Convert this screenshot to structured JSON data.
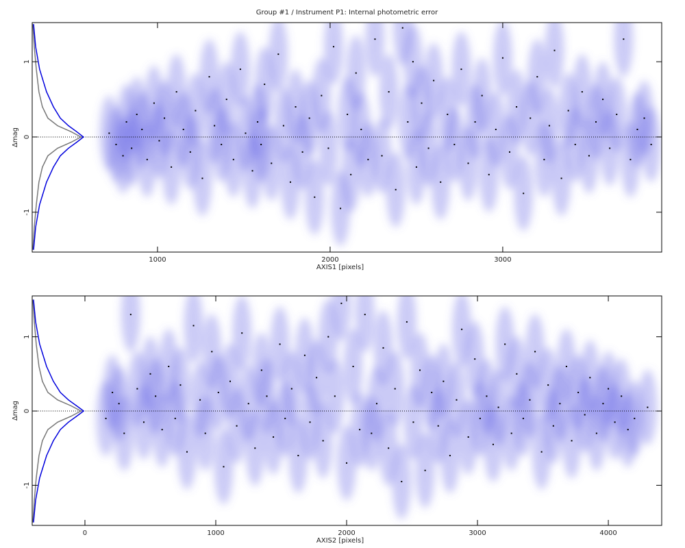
{
  "chart_data": [
    {
      "type": "scatter",
      "title": "Group #1 / Instrument P1: Internal photometric error",
      "xlabel": "AXIS1 [pixels]",
      "ylabel": "Δmag",
      "xlim": [
        274,
        3921
      ],
      "ylim": [
        -1.53,
        1.52
      ],
      "xticks": [
        1000,
        2000,
        3000
      ],
      "yticks": [
        -1,
        0,
        1
      ],
      "hline": 0,
      "color": "#000000",
      "density_color": "#6a6ae6",
      "x": [
        720,
        760,
        800,
        820,
        850,
        880,
        910,
        940,
        980,
        1010,
        1040,
        1080,
        1110,
        1150,
        1190,
        1220,
        1260,
        1300,
        1330,
        1370,
        1400,
        1440,
        1480,
        1510,
        1550,
        1580,
        1600,
        1620,
        1660,
        1700,
        1730,
        1770,
        1800,
        1840,
        1880,
        1910,
        1950,
        1990,
        2020,
        2060,
        2100,
        2120,
        2150,
        2180,
        2220,
        2260,
        2300,
        2340,
        2380,
        2420,
        2450,
        2480,
        2500,
        2530,
        2570,
        2600,
        2640,
        2680,
        2720,
        2760,
        2800,
        2840,
        2880,
        2920,
        2960,
        3000,
        3040,
        3080,
        3120,
        3160,
        3200,
        3240,
        3270,
        3300,
        3340,
        3380,
        3420,
        3460,
        3500,
        3540,
        3580,
        3620,
        3660,
        3700,
        3740,
        3780,
        3820,
        3860
      ],
      "values": [
        0.05,
        -0.1,
        -0.25,
        0.2,
        -0.15,
        0.3,
        0.1,
        -0.3,
        0.45,
        -0.05,
        0.25,
        -0.4,
        0.6,
        0.1,
        -0.2,
        0.35,
        -0.55,
        0.8,
        0.15,
        -0.1,
        0.5,
        -0.3,
        0.9,
        0.05,
        -0.45,
        0.2,
        -0.1,
        0.7,
        -0.35,
        1.1,
        0.15,
        -0.6,
        0.4,
        -0.2,
        0.25,
        -0.8,
        0.55,
        -0.15,
        1.2,
        -0.95,
        0.3,
        -0.5,
        0.85,
        0.1,
        -0.3,
        1.3,
        -0.25,
        0.6,
        -0.7,
        1.45,
        0.2,
        1.0,
        -0.4,
        0.45,
        -0.15,
        0.75,
        -0.6,
        0.3,
        -0.1,
        0.9,
        -0.35,
        0.2,
        0.55,
        -0.5,
        0.1,
        1.05,
        -0.2,
        0.4,
        -0.75,
        0.25,
        0.8,
        -0.3,
        0.15,
        1.15,
        -0.55,
        0.35,
        -0.1,
        0.6,
        -0.25,
        0.2,
        0.5,
        -0.15,
        0.3,
        1.3,
        -0.3,
        0.1,
        0.25,
        -0.1
      ],
      "curves": [
        {
          "color": "#777777",
          "x": [
            278,
            286,
            298,
            313,
            333,
            365,
            421,
            500,
            556,
            500,
            421,
            365,
            333,
            313,
            298,
            286,
            278
          ],
          "values": [
            -1.5,
            -1.2,
            -0.9,
            -0.6,
            -0.4,
            -0.25,
            -0.15,
            -0.07,
            0,
            0.07,
            0.15,
            0.25,
            0.4,
            0.6,
            0.9,
            1.2,
            1.5
          ]
        },
        {
          "color": "#0000dd",
          "x": [
            282,
            294,
            317,
            357,
            397,
            437,
            484,
            532,
            571,
            532,
            484,
            437,
            397,
            357,
            317,
            294,
            282
          ],
          "values": [
            -1.5,
            -1.2,
            -0.9,
            -0.6,
            -0.4,
            -0.25,
            -0.15,
            -0.07,
            0,
            0.07,
            0.15,
            0.25,
            0.4,
            0.6,
            0.9,
            1.2,
            1.5
          ]
        }
      ]
    },
    {
      "type": "scatter",
      "xlabel": "AXIS2 [pixels]",
      "ylabel": "Δmag",
      "xlim": [
        -403,
        4408
      ],
      "ylim": [
        -1.54,
        1.55
      ],
      "xticks": [
        0,
        1000,
        2000,
        3000,
        4000
      ],
      "yticks": [
        -1,
        0,
        1
      ],
      "hline": 0,
      "color": "#000000",
      "density_color": "#6a6ae6",
      "x": [
        160,
        210,
        260,
        300,
        350,
        400,
        450,
        500,
        540,
        590,
        640,
        690,
        730,
        780,
        830,
        880,
        920,
        970,
        1020,
        1060,
        1110,
        1160,
        1200,
        1250,
        1300,
        1350,
        1390,
        1440,
        1490,
        1530,
        1580,
        1630,
        1680,
        1720,
        1770,
        1820,
        1860,
        1910,
        1960,
        2000,
        2050,
        2100,
        2140,
        2190,
        2230,
        2280,
        2320,
        2370,
        2420,
        2460,
        2510,
        2560,
        2600,
        2650,
        2700,
        2740,
        2790,
        2840,
        2880,
        2930,
        2980,
        3020,
        3070,
        3120,
        3160,
        3210,
        3260,
        3300,
        3350,
        3400,
        3440,
        3490,
        3540,
        3580,
        3630,
        3680,
        3720,
        3770,
        3820,
        3860,
        3910,
        3960,
        4000,
        4050,
        4100,
        4150,
        4200,
        4300
      ],
      "values": [
        -0.1,
        0.25,
        0.1,
        -0.3,
        1.3,
        0.3,
        -0.15,
        0.5,
        0.2,
        -0.25,
        0.6,
        -0.1,
        0.35,
        -0.55,
        1.15,
        0.15,
        -0.3,
        0.8,
        0.25,
        -0.75,
        0.4,
        -0.2,
        1.05,
        0.1,
        -0.5,
        0.55,
        0.2,
        -0.35,
        0.9,
        -0.1,
        0.3,
        -0.6,
        0.75,
        -0.15,
        0.45,
        -0.4,
        1.0,
        0.2,
        1.45,
        -0.7,
        0.6,
        -0.25,
        1.3,
        -0.3,
        0.1,
        0.85,
        -0.5,
        0.3,
        -0.95,
        1.2,
        -0.15,
        0.55,
        -0.8,
        0.25,
        -0.2,
        0.4,
        -0.6,
        0.15,
        1.1,
        -0.35,
        0.7,
        -0.1,
        0.2,
        -0.45,
        0.05,
        0.9,
        -0.3,
        0.5,
        -0.1,
        0.15,
        0.8,
        -0.55,
        0.35,
        -0.2,
        0.1,
        0.6,
        -0.4,
        0.25,
        -0.05,
        0.45,
        -0.3,
        0.1,
        0.3,
        -0.15,
        0.2,
        -0.25,
        -0.1,
        0.05
      ],
      "curves": [
        {
          "color": "#777777",
          "x": [
            -398,
            -387,
            -372,
            -351,
            -325,
            -283,
            -209,
            -105,
            -31,
            -105,
            -209,
            -283,
            -325,
            -351,
            -372,
            -387,
            -398
          ],
          "values": [
            -1.5,
            -1.2,
            -0.9,
            -0.6,
            -0.4,
            -0.25,
            -0.15,
            -0.07,
            0,
            0.07,
            0.15,
            0.25,
            0.4,
            0.6,
            0.9,
            1.2,
            1.5
          ]
        },
        {
          "color": "#0000dd",
          "x": [
            -393,
            -377,
            -346,
            -293,
            -241,
            -188,
            -126,
            -63,
            -10,
            -63,
            -126,
            -188,
            -241,
            -293,
            -346,
            -377,
            -393
          ],
          "values": [
            -1.5,
            -1.2,
            -0.9,
            -0.6,
            -0.4,
            -0.25,
            -0.15,
            -0.07,
            0,
            0.07,
            0.15,
            0.25,
            0.4,
            0.6,
            0.9,
            1.2,
            1.5
          ]
        }
      ]
    }
  ]
}
